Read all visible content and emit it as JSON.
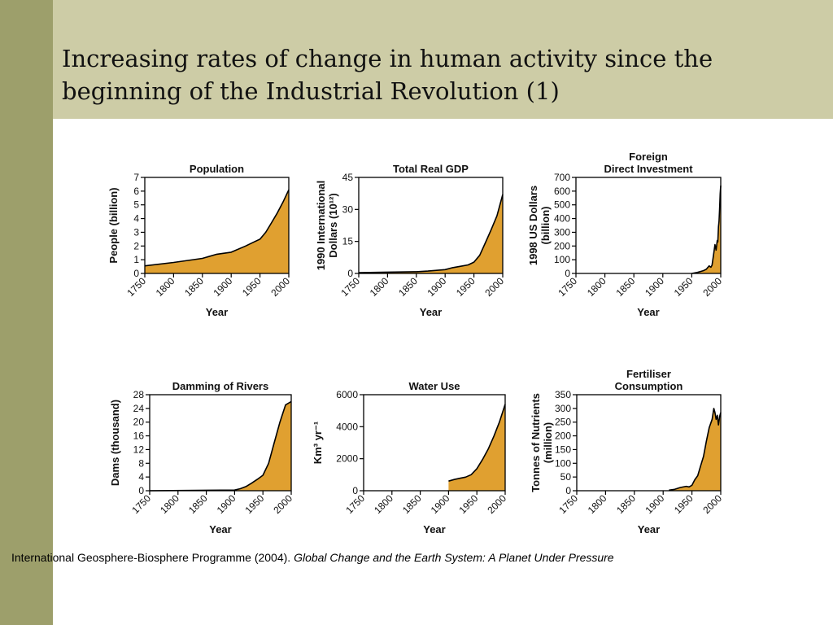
{
  "slide": {
    "title": "Increasing rates of change in human activity since the beginning of the Industrial Revolution (1)",
    "caption_plain": "International Geosphere-Biosphere Programme (2004). ",
    "caption_italic": "Global Change and the Earth System: A Planet Under Pressure"
  },
  "colors": {
    "sidebar": "#9d9f6b",
    "title_band": "#cdcca6",
    "area_fill": "#e0a030",
    "line": "#000000"
  },
  "chart_data": [
    {
      "type": "area",
      "title": [
        "Population"
      ],
      "ylabel": [
        "People (billion)"
      ],
      "xlabel": "Year",
      "xlim": [
        1750,
        2000
      ],
      "ylim": [
        0,
        7
      ],
      "yticks": [
        0,
        1,
        2,
        3,
        4,
        5,
        6,
        7
      ],
      "xticks": [
        1750,
        1800,
        1850,
        1900,
        1950,
        2000
      ],
      "x": [
        1750,
        1800,
        1850,
        1875,
        1900,
        1925,
        1940,
        1950,
        1960,
        1970,
        1980,
        1990,
        2000
      ],
      "y": [
        0.55,
        0.8,
        1.1,
        1.4,
        1.55,
        2.0,
        2.3,
        2.5,
        3.0,
        3.7,
        4.4,
        5.2,
        6.1
      ]
    },
    {
      "type": "area",
      "title": [
        "Total Real GDP"
      ],
      "ylabel": [
        "1990 International",
        "Dollars (10¹²)"
      ],
      "xlabel": "Year",
      "xlim": [
        1750,
        2000
      ],
      "ylim": [
        0,
        45
      ],
      "yticks": [
        0,
        15,
        30,
        45
      ],
      "xticks": [
        1750,
        1800,
        1850,
        1900,
        1950,
        2000
      ],
      "x": [
        1750,
        1800,
        1850,
        1870,
        1900,
        1913,
        1930,
        1940,
        1950,
        1960,
        1970,
        1980,
        1990,
        2000
      ],
      "y": [
        0.4,
        0.6,
        0.8,
        1.1,
        1.8,
        2.7,
        3.5,
        4.0,
        5.3,
        8.5,
        14.5,
        20.5,
        27,
        37
      ]
    },
    {
      "type": "area",
      "title": [
        "Foreign",
        "Direct Investment"
      ],
      "ylabel": [
        "1998 US Dollars",
        "(billion)"
      ],
      "xlabel": "Year",
      "xlim": [
        1750,
        2000
      ],
      "ylim": [
        0,
        700
      ],
      "yticks": [
        0,
        100,
        200,
        300,
        400,
        500,
        600,
        700
      ],
      "xticks": [
        1750,
        1800,
        1850,
        1900,
        1950,
        2000
      ],
      "x": [
        1950,
        1960,
        1970,
        1975,
        1980,
        1983,
        1985,
        1988,
        1990,
        1992,
        1994,
        1995,
        1996,
        1997,
        1998,
        1999,
        2000
      ],
      "y": [
        0,
        8,
        20,
        30,
        55,
        45,
        60,
        150,
        210,
        170,
        240,
        230,
        340,
        380,
        470,
        580,
        640
      ]
    },
    {
      "type": "area",
      "title": [
        "Damming of Rivers"
      ],
      "ylabel": [
        "Dams (thousand)"
      ],
      "xlabel": "Year",
      "xlim": [
        1750,
        2000
      ],
      "ylim": [
        0,
        28
      ],
      "yticks": [
        0,
        4,
        8,
        12,
        16,
        20,
        24,
        28
      ],
      "xticks": [
        1750,
        1800,
        1850,
        1900,
        1950,
        2000
      ],
      "x": [
        1750,
        1900,
        1910,
        1920,
        1930,
        1940,
        1950,
        1960,
        1970,
        1980,
        1990,
        2000
      ],
      "y": [
        0,
        0.2,
        0.6,
        1.2,
        2.2,
        3.3,
        4.5,
        8,
        14,
        20,
        25,
        26
      ]
    },
    {
      "type": "area",
      "title": [
        "Water Use"
      ],
      "ylabel": [
        "Km³ yr⁻¹"
      ],
      "xlabel": "Year",
      "xlim": [
        1750,
        2000
      ],
      "ylim": [
        0,
        6000
      ],
      "yticks": [
        0,
        2000,
        4000,
        6000
      ],
      "xticks": [
        1750,
        1800,
        1850,
        1900,
        1950,
        2000
      ],
      "x": [
        1900,
        1910,
        1920,
        1930,
        1940,
        1950,
        1960,
        1970,
        1980,
        1990,
        2000
      ],
      "y": [
        600,
        700,
        780,
        850,
        1000,
        1380,
        1950,
        2600,
        3400,
        4300,
        5400
      ]
    },
    {
      "type": "area",
      "title": [
        "Fertiliser",
        "Consumption"
      ],
      "ylabel": [
        "Tonnes of Nutrients",
        "(million)"
      ],
      "xlabel": "Year",
      "xlim": [
        1750,
        2000
      ],
      "ylim": [
        0,
        350
      ],
      "yticks": [
        0,
        50,
        100,
        150,
        200,
        250,
        300,
        350
      ],
      "xticks": [
        1750,
        1800,
        1850,
        1900,
        1950,
        2000
      ],
      "x": [
        1910,
        1920,
        1930,
        1940,
        1945,
        1950,
        1955,
        1960,
        1965,
        1970,
        1975,
        1980,
        1985,
        1988,
        1990,
        1992,
        1994,
        1996,
        1998,
        2000
      ],
      "y": [
        2,
        5,
        12,
        16,
        14,
        20,
        40,
        55,
        90,
        125,
        180,
        230,
        260,
        300,
        285,
        260,
        275,
        240,
        270,
        285
      ]
    }
  ]
}
